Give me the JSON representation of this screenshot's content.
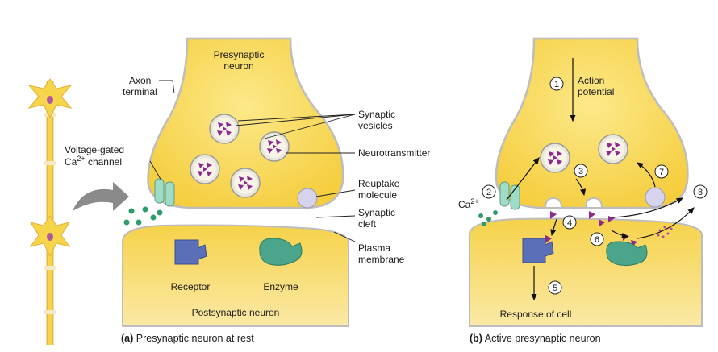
{
  "labels": {
    "presynaptic_neuron_line1": "Presynaptic",
    "presynaptic_neuron_line2": "neuron",
    "axon_terminal_line1": "Axon",
    "axon_terminal_line2": "terminal",
    "synaptic_vesicles_line1": "Synaptic",
    "synaptic_vesicles_line2": "vesicles",
    "neurotransmitter": "Neurotransmitter",
    "voltage_gated_line1": "Voltage-gated",
    "voltage_gated_ca": "Ca",
    "voltage_gated_sup": "2+",
    "voltage_gated_channel": " channel",
    "reuptake_line1": "Reuptake",
    "reuptake_line2": "molecule",
    "synaptic_cleft_line1": "Synaptic",
    "synaptic_cleft_line2": "cleft",
    "plasma_membrane_line1": "Plasma",
    "plasma_membrane_line2": "membrane",
    "receptor": "Receptor",
    "enzyme": "Enzyme",
    "postsynaptic_neuron": "Postsynaptic neuron",
    "action_potential_line1": "Action",
    "action_potential_line2": "potential",
    "ca2_ion": "Ca",
    "ca2_sup": "2+",
    "response_of_cell": "Response of cell"
  },
  "captions": {
    "a_letter": "(a)",
    "a_text": " Presynaptic neuron at rest",
    "b_letter": "(b)",
    "b_text": " Active presynaptic neuron"
  },
  "steps": [
    "1",
    "2",
    "3",
    "4",
    "5",
    "6",
    "7",
    "8"
  ],
  "colors": {
    "cytoplasm": "#f7d54a",
    "cytoplasm_light": "#fbe78a",
    "membrane_edge": "#a8a8a8",
    "vesicle_fill": "#f8f5e8",
    "neurotransmitter": "#8e2a8e",
    "receptor": "#5b6fb8",
    "enzyme": "#4aa58a",
    "channel": "#9fdcc8",
    "reuptake": "#d6d4ec",
    "ca_ion": "#2e9c6c",
    "arrow_gray": "#888888"
  }
}
